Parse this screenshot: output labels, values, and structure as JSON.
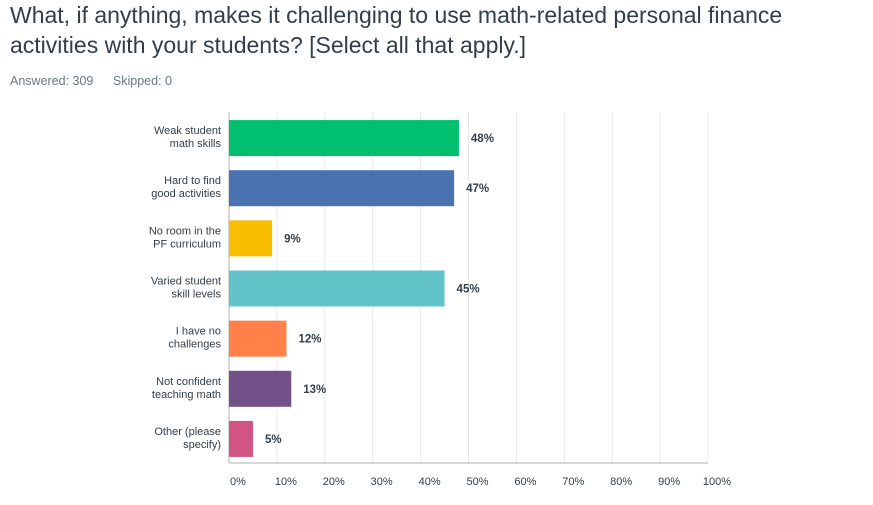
{
  "survey": {
    "question": "What, if anything, makes it challenging to use math-related personal finance activities with your students? [Select all that apply.]",
    "answered": "Answered: 309",
    "skipped": "Skipped: 0"
  },
  "chart_data": {
    "type": "bar",
    "orientation": "horizontal",
    "categories": [
      [
        "Weak student",
        "math skills"
      ],
      [
        "Hard to find",
        "good activities"
      ],
      [
        "No room in the",
        "PF curriculum"
      ],
      [
        "Varied student",
        "skill levels"
      ],
      [
        "I have no",
        "challenges"
      ],
      [
        "Not confident",
        "teaching math"
      ],
      [
        "Other (please",
        "specify)"
      ]
    ],
    "values": [
      48,
      47,
      9,
      45,
      12,
      13,
      5
    ],
    "value_labels": [
      "48%",
      "47%",
      "9%",
      "45%",
      "12%",
      "13%",
      "5%"
    ],
    "colors": [
      "#00bf6f",
      "#4a72b0",
      "#f9be00",
      "#62c3c8",
      "#ff8149",
      "#725088",
      "#d25483"
    ],
    "xlim": [
      0,
      100
    ],
    "xticks": [
      "0%",
      "10%",
      "20%",
      "30%",
      "40%",
      "50%",
      "60%",
      "70%",
      "80%",
      "90%",
      "100%"
    ],
    "grid": true
  }
}
